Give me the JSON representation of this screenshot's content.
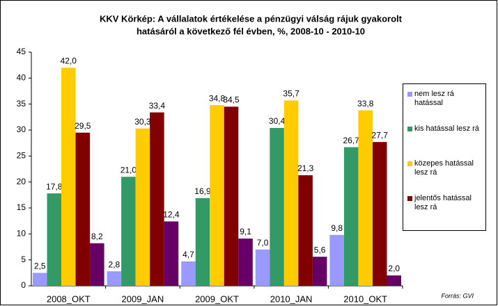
{
  "chart_data": {
    "type": "bar",
    "title": "KKV Körkép: A vállalatok értékelése a pénzügyi válság rájuk gyakorolt",
    "subtitle": "hatásáról a következő fél évben, %, 2008-10 - 2010-10",
    "source": "Forrás: GVI",
    "categories": [
      "2008_OKT",
      "2009_JAN",
      "2009_OKT",
      "2010_JAN",
      "2010_OKT"
    ],
    "series": [
      {
        "name": "nem lesz rá hatással",
        "color": "#9999ff",
        "values": [
          2.5,
          2.8,
          4.7,
          7.0,
          9.8
        ],
        "value_labels": [
          "2,5",
          "2,8",
          "4,7",
          "7,0",
          "9,8"
        ]
      },
      {
        "name": "kis hatással lesz rá",
        "color": "#339966",
        "values": [
          17.8,
          21.0,
          16.9,
          30.4,
          26.7
        ],
        "value_labels": [
          "17,8",
          "21,0",
          "16,9",
          "30,4",
          "26,7"
        ]
      },
      {
        "name": "közepes hatással lesz rá",
        "color": "#ffcc00",
        "values": [
          42.0,
          30.3,
          34.8,
          35.7,
          33.8
        ],
        "value_labels": [
          "42,0",
          "30,3",
          "34,8",
          "35,7",
          "33,8"
        ]
      },
      {
        "name": "jelentős hatással lesz rá",
        "color": "#800000",
        "values": [
          29.5,
          33.4,
          34.5,
          21.3,
          27.7
        ],
        "value_labels": [
          "29,5",
          "33,4",
          "34,5",
          "21,3",
          "27,7"
        ]
      },
      {
        "name": null,
        "color": "#660066",
        "values": [
          8.2,
          12.4,
          9.1,
          5.6,
          2.0
        ],
        "value_labels": [
          "8,2",
          "12,4",
          "9,1",
          "5,6",
          "2,0"
        ]
      }
    ],
    "ylim": [
      0,
      45
    ],
    "yticks": [
      0,
      5,
      10,
      15,
      20,
      25,
      30,
      35,
      40,
      45
    ],
    "grid": false,
    "legend": "right"
  }
}
